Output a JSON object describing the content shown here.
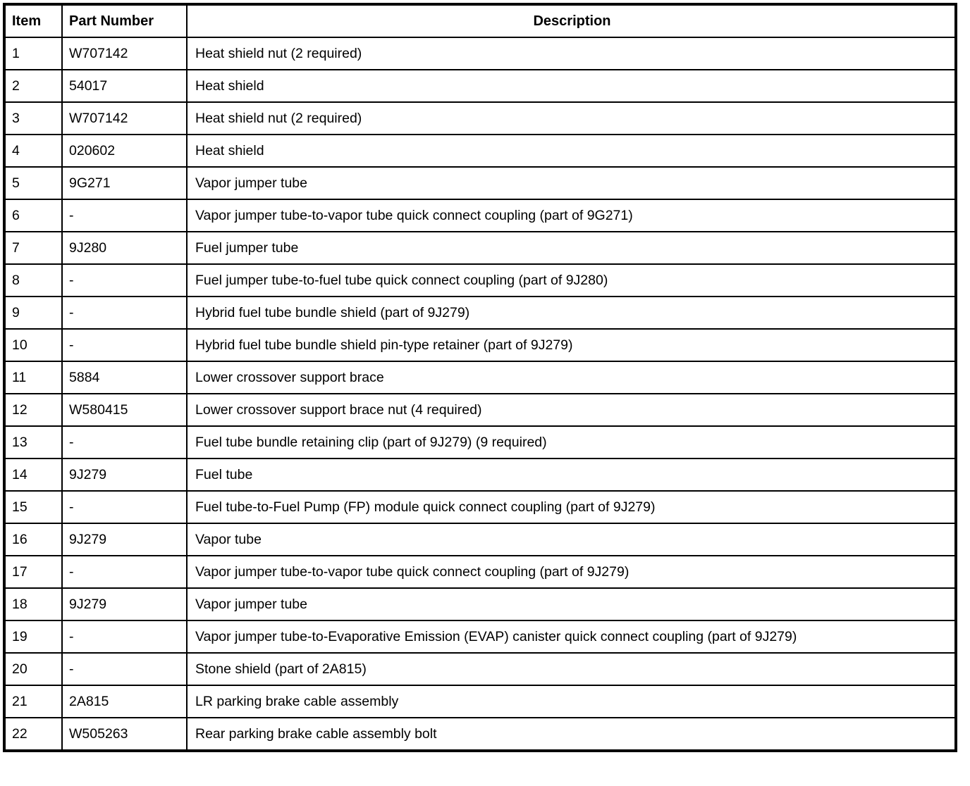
{
  "table": {
    "headers": {
      "item": "Item",
      "part_number": "Part Number",
      "description": "Description"
    },
    "rows": [
      {
        "item": "1",
        "part": "W707142",
        "desc": "Heat shield nut (2 required)"
      },
      {
        "item": "2",
        "part": "54017",
        "desc": "Heat shield"
      },
      {
        "item": "3",
        "part": "W707142",
        "desc": "Heat shield nut (2 required)"
      },
      {
        "item": "4",
        "part": "020602",
        "desc": "Heat shield"
      },
      {
        "item": "5",
        "part": "9G271",
        "desc": "Vapor jumper tube"
      },
      {
        "item": "6",
        "part": "-",
        "desc": "Vapor jumper tube-to-vapor tube quick connect coupling (part of 9G271)"
      },
      {
        "item": "7",
        "part": "9J280",
        "desc": "Fuel jumper tube"
      },
      {
        "item": "8",
        "part": "-",
        "desc": "Fuel jumper tube-to-fuel tube quick connect coupling (part of 9J280)"
      },
      {
        "item": "9",
        "part": "-",
        "desc": "Hybrid fuel tube bundle shield (part of 9J279)"
      },
      {
        "item": "10",
        "part": "-",
        "desc": "Hybrid fuel tube bundle shield pin-type retainer (part of 9J279)"
      },
      {
        "item": "11",
        "part": "5884",
        "desc": "Lower crossover support brace"
      },
      {
        "item": "12",
        "part": "W580415",
        "desc": "Lower crossover support brace nut (4 required)"
      },
      {
        "item": "13",
        "part": "-",
        "desc": "Fuel tube bundle retaining clip (part of 9J279) (9 required)"
      },
      {
        "item": "14",
        "part": "9J279",
        "desc": "Fuel tube"
      },
      {
        "item": "15",
        "part": "-",
        "desc": "Fuel tube-to-Fuel Pump (FP) module quick connect coupling (part of 9J279)"
      },
      {
        "item": "16",
        "part": "9J279",
        "desc": "Vapor tube"
      },
      {
        "item": "17",
        "part": "-",
        "desc": "Vapor jumper tube-to-vapor tube quick connect coupling (part of 9J279)"
      },
      {
        "item": "18",
        "part": "9J279",
        "desc": "Vapor jumper tube"
      },
      {
        "item": "19",
        "part": "-",
        "desc": "Vapor jumper tube-to-Evaporative Emission (EVAP) canister quick connect coupling (part of 9J279)"
      },
      {
        "item": "20",
        "part": "-",
        "desc": "Stone shield (part of 2A815)"
      },
      {
        "item": "21",
        "part": "2A815",
        "desc": "LR parking brake cable assembly"
      },
      {
        "item": "22",
        "part": "W505263",
        "desc": "Rear parking brake cable assembly bolt"
      }
    ],
    "colors": {
      "border": "#000000",
      "background": "#ffffff",
      "text": "#000000"
    }
  }
}
